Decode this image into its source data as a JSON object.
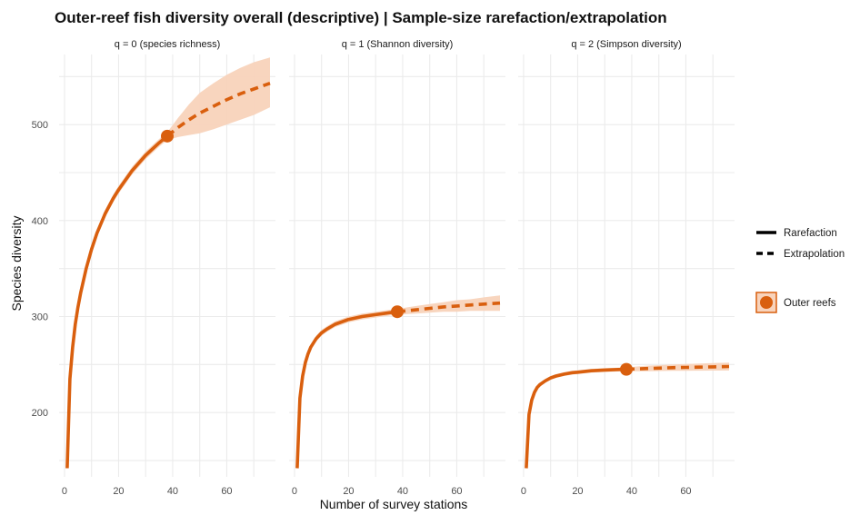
{
  "chart_data": {
    "type": "line",
    "title": "Outer-reef fish diversity overall (descriptive) | Sample-size rarefaction/extrapolation",
    "xlabel": "Number of survey stations",
    "ylabel": "Species diversity",
    "xlim": [
      -2,
      78
    ],
    "ylim": [
      133,
      573
    ],
    "x_ticks": [
      0,
      20,
      40,
      60
    ],
    "y_ticks": [
      200,
      300,
      400,
      500
    ],
    "grid": true,
    "legend_position": "right",
    "legend": {
      "linetypes": [
        "Rarefaction",
        "Extrapolation"
      ],
      "groups": [
        "Outer reefs"
      ]
    },
    "colors": {
      "line": "#d95f0e",
      "band": "#f8d3bb"
    },
    "panels": [
      {
        "label": "q = 0 (species richness)",
        "observed": {
          "x": 38,
          "y": 488
        },
        "rarefaction": {
          "x": [
            1,
            2,
            3,
            4,
            5,
            6,
            8,
            10,
            12,
            15,
            18,
            20,
            25,
            30,
            35,
            38
          ],
          "y": [
            142,
            235,
            268,
            292,
            310,
            325,
            350,
            370,
            387,
            407,
            423,
            432,
            452,
            468,
            481,
            488
          ]
        },
        "extrapolation": {
          "x": [
            38,
            42,
            46,
            50,
            55,
            60,
            65,
            70,
            76
          ],
          "y": [
            488,
            497,
            505,
            512,
            519,
            526,
            532,
            537,
            543
          ]
        },
        "ci_lower": [
          140,
          231,
          264,
          288,
          306,
          321,
          346,
          366,
          383,
          403,
          419,
          428,
          448,
          464,
          477,
          484,
          487,
          489,
          491,
          495,
          500,
          505,
          510,
          518
        ],
        "ci_upper": [
          144,
          239,
          272,
          296,
          314,
          329,
          354,
          374,
          391,
          411,
          427,
          436,
          456,
          472,
          485,
          492,
          507,
          521,
          533,
          543,
          552,
          559,
          565,
          570
        ]
      },
      {
        "label": "q = 1 (Shannon diversity)",
        "observed": {
          "x": 38,
          "y": 305
        },
        "rarefaction": {
          "x": [
            1,
            2,
            3,
            4,
            5,
            6,
            8,
            10,
            12,
            15,
            18,
            20,
            25,
            30,
            35,
            38
          ],
          "y": [
            142,
            215,
            238,
            252,
            261,
            268,
            277,
            283,
            287,
            292,
            295,
            297,
            300,
            302,
            304,
            305
          ]
        },
        "extrapolation": {
          "x": [
            38,
            45,
            50,
            55,
            60,
            65,
            70,
            76
          ],
          "y": [
            305,
            307,
            308.5,
            310,
            311,
            312,
            313,
            314
          ]
        },
        "ci_lower": [
          140,
          212,
          235,
          249,
          258,
          265,
          274,
          280,
          284,
          289,
          292,
          294,
          297,
          299,
          301,
          302,
          303,
          304,
          305,
          305,
          306,
          306,
          306
        ],
        "ci_upper": [
          144,
          218,
          241,
          255,
          264,
          271,
          280,
          286,
          290,
          295,
          298,
          300,
          303,
          305,
          307,
          308,
          311,
          313,
          315,
          317,
          318,
          320,
          322
        ]
      },
      {
        "label": "q = 2 (Simpson diversity)",
        "observed": {
          "x": 38,
          "y": 245
        },
        "rarefaction": {
          "x": [
            1,
            2,
            3,
            4,
            5,
            6,
            8,
            10,
            12,
            15,
            18,
            20,
            25,
            30,
            35,
            38
          ],
          "y": [
            142,
            198,
            213,
            221,
            226,
            229,
            233,
            236,
            238,
            240,
            241.5,
            242,
            243.5,
            244.3,
            244.8,
            245
          ]
        },
        "extrapolation": {
          "x": [
            38,
            45,
            50,
            55,
            60,
            65,
            70,
            76
          ],
          "y": [
            245,
            245.8,
            246.3,
            246.7,
            247,
            247.3,
            247.6,
            248
          ]
        },
        "ci_lower": [
          140,
          196,
          211,
          219,
          224,
          227,
          231,
          234,
          236,
          238,
          239.5,
          240,
          241.5,
          242.3,
          242.8,
          243,
          243,
          243.2,
          243.4,
          243.5,
          243.6,
          243.7,
          243.8
        ],
        "ci_upper": [
          144,
          200,
          215,
          223,
          228,
          231,
          235,
          238,
          240,
          242,
          243.5,
          244,
          245.5,
          246.3,
          246.8,
          247,
          248.6,
          249.4,
          250,
          250.5,
          251,
          251.5,
          252
        ]
      }
    ]
  }
}
